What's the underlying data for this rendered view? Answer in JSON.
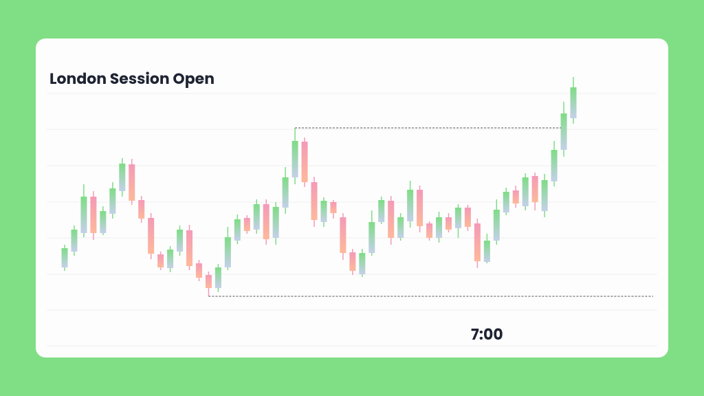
{
  "chart_data": {
    "type": "candlestick",
    "title": "London Session Open",
    "annotation": "7:00",
    "ylim": [
      0,
      393
    ],
    "yticks": [
      0,
      52,
      104,
      157,
      209,
      262,
      315,
      367
    ],
    "grid": true,
    "up_color": [
      "#7fdc86",
      "#c5d0ea"
    ],
    "down_color": [
      "#f49ab8",
      "#fdb99a"
    ],
    "ohlc": [
      [
        114,
        147,
        109,
        142
      ],
      [
        137,
        175,
        131,
        169
      ],
      [
        164,
        235,
        158,
        217
      ],
      [
        217,
        225,
        154,
        164
      ],
      [
        164,
        203,
        161,
        196
      ],
      [
        192,
        238,
        185,
        229
      ],
      [
        225,
        273,
        217,
        265
      ],
      [
        264,
        272,
        205,
        211
      ],
      [
        212,
        218,
        179,
        185
      ],
      [
        186,
        193,
        126,
        134
      ],
      [
        133,
        137,
        110,
        114
      ],
      [
        113,
        145,
        107,
        140
      ],
      [
        137,
        175,
        131,
        169
      ],
      [
        168,
        176,
        110,
        116
      ],
      [
        120,
        125,
        94,
        99
      ],
      [
        103,
        108,
        72,
        84
      ],
      [
        84,
        119,
        78,
        114
      ],
      [
        114,
        173,
        110,
        158
      ],
      [
        153,
        191,
        148,
        184
      ],
      [
        186,
        190,
        163,
        167
      ],
      [
        169,
        213,
        163,
        206
      ],
      [
        206,
        213,
        147,
        155
      ],
      [
        157,
        209,
        147,
        202
      ],
      [
        201,
        260,
        192,
        245
      ],
      [
        245,
        317,
        235,
        298
      ],
      [
        297,
        303,
        231,
        238
      ],
      [
        238,
        246,
        173,
        183
      ],
      [
        180,
        216,
        173,
        211
      ],
      [
        209,
        212,
        185,
        193
      ],
      [
        187,
        193,
        125,
        135
      ],
      [
        136,
        141,
        103,
        109
      ],
      [
        104,
        141,
        100,
        135
      ],
      [
        135,
        197,
        131,
        180
      ],
      [
        180,
        217,
        177,
        212
      ],
      [
        211,
        218,
        147,
        157
      ],
      [
        157,
        193,
        153,
        187
      ],
      [
        181,
        240,
        172,
        227
      ],
      [
        227,
        233,
        165,
        174
      ],
      [
        178,
        181,
        153,
        157
      ],
      [
        157,
        195,
        150,
        187
      ],
      [
        187,
        193,
        165,
        169
      ],
      [
        171,
        206,
        157,
        201
      ],
      [
        201,
        205,
        167,
        173
      ],
      [
        178,
        185,
        113,
        123
      ],
      [
        122,
        163,
        120,
        153
      ],
      [
        153,
        213,
        147,
        198
      ],
      [
        194,
        230,
        190,
        224
      ],
      [
        226,
        233,
        201,
        207
      ],
      [
        203,
        251,
        197,
        245
      ],
      [
        247,
        252,
        197,
        209
      ],
      [
        196,
        250,
        187,
        241
      ],
      [
        239,
        298,
        232,
        285
      ],
      [
        285,
        355,
        275,
        338
      ],
      [
        331,
        391,
        323,
        376
      ]
    ]
  }
}
